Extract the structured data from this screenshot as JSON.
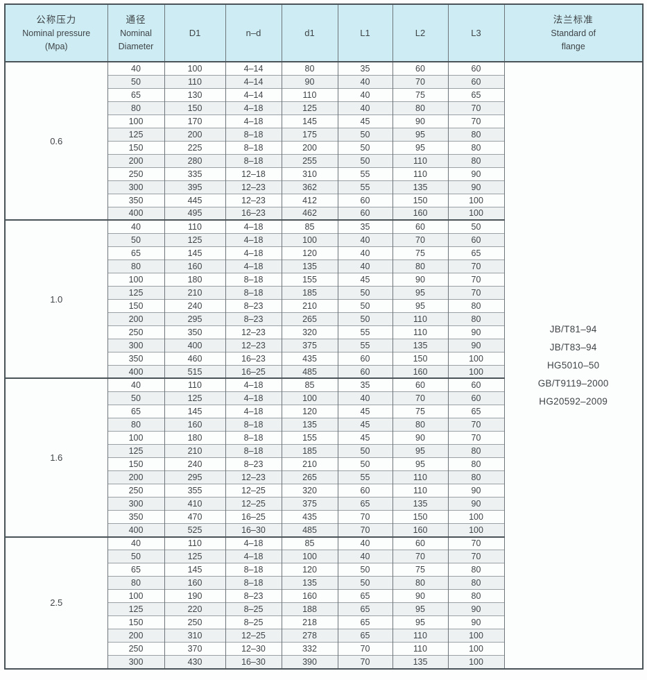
{
  "header": {
    "pressure": {
      "zh": "公称压力",
      "en": "Nominal pressure",
      "unit": "(Mpa)"
    },
    "diameter": {
      "zh": "通径",
      "en1": "Nominal",
      "en2": "Diameter"
    },
    "dims": [
      "D1",
      "n–d",
      "d1",
      "L1",
      "L2",
      "L3"
    ],
    "dim_names": [
      "diameter",
      "D1",
      "n-d",
      "d1",
      "L1",
      "L2",
      "L3"
    ],
    "standard": {
      "zh": "法兰标准",
      "en1": "Standard of",
      "en2": "flange"
    }
  },
  "standards": [
    "JB/T81–94",
    "JB/T83–94",
    "HG5010–50",
    "GB/T9119–2000",
    "HG20592–2009"
  ],
  "groups": [
    {
      "pressure": "0.6",
      "rows": [
        [
          "40",
          "100",
          "4–14",
          "80",
          "35",
          "60",
          "60"
        ],
        [
          "50",
          "110",
          "4–14",
          "90",
          "40",
          "70",
          "60"
        ],
        [
          "65",
          "130",
          "4–14",
          "110",
          "40",
          "75",
          "65"
        ],
        [
          "80",
          "150",
          "4–18",
          "125",
          "40",
          "80",
          "70"
        ],
        [
          "100",
          "170",
          "4–18",
          "145",
          "45",
          "90",
          "70"
        ],
        [
          "125",
          "200",
          "8–18",
          "175",
          "50",
          "95",
          "80"
        ],
        [
          "150",
          "225",
          "8–18",
          "200",
          "50",
          "95",
          "80"
        ],
        [
          "200",
          "280",
          "8–18",
          "255",
          "50",
          "110",
          "80"
        ],
        [
          "250",
          "335",
          "12–18",
          "310",
          "55",
          "110",
          "90"
        ],
        [
          "300",
          "395",
          "12–23",
          "362",
          "55",
          "135",
          "90"
        ],
        [
          "350",
          "445",
          "12–23",
          "412",
          "60",
          "150",
          "100"
        ],
        [
          "400",
          "495",
          "16–23",
          "462",
          "60",
          "160",
          "100"
        ]
      ]
    },
    {
      "pressure": "1.0",
      "rows": [
        [
          "40",
          "110",
          "4–18",
          "85",
          "35",
          "60",
          "50"
        ],
        [
          "50",
          "125",
          "4–18",
          "100",
          "40",
          "70",
          "60"
        ],
        [
          "65",
          "145",
          "4–18",
          "120",
          "40",
          "75",
          "65"
        ],
        [
          "80",
          "160",
          "4–18",
          "135",
          "40",
          "80",
          "70"
        ],
        [
          "100",
          "180",
          "8–18",
          "155",
          "45",
          "90",
          "70"
        ],
        [
          "125",
          "210",
          "8–18",
          "185",
          "50",
          "95",
          "70"
        ],
        [
          "150",
          "240",
          "8–23",
          "210",
          "50",
          "95",
          "80"
        ],
        [
          "200",
          "295",
          "8–23",
          "265",
          "50",
          "110",
          "80"
        ],
        [
          "250",
          "350",
          "12–23",
          "320",
          "55",
          "110",
          "90"
        ],
        [
          "300",
          "400",
          "12–23",
          "375",
          "55",
          "135",
          "90"
        ],
        [
          "350",
          "460",
          "16–23",
          "435",
          "60",
          "150",
          "100"
        ],
        [
          "400",
          "515",
          "16–25",
          "485",
          "60",
          "160",
          "100"
        ]
      ]
    },
    {
      "pressure": "1.6",
      "rows": [
        [
          "40",
          "110",
          "4–18",
          "85",
          "35",
          "60",
          "60"
        ],
        [
          "50",
          "125",
          "4–18",
          "100",
          "40",
          "70",
          "60"
        ],
        [
          "65",
          "145",
          "4–18",
          "120",
          "45",
          "75",
          "65"
        ],
        [
          "80",
          "160",
          "8–18",
          "135",
          "45",
          "80",
          "70"
        ],
        [
          "100",
          "180",
          "8–18",
          "155",
          "45",
          "90",
          "70"
        ],
        [
          "125",
          "210",
          "8–18",
          "185",
          "50",
          "95",
          "80"
        ],
        [
          "150",
          "240",
          "8–23",
          "210",
          "50",
          "95",
          "80"
        ],
        [
          "200",
          "295",
          "12–23",
          "265",
          "55",
          "110",
          "80"
        ],
        [
          "250",
          "355",
          "12–25",
          "320",
          "60",
          "110",
          "90"
        ],
        [
          "300",
          "410",
          "12–25",
          "375",
          "65",
          "135",
          "90"
        ],
        [
          "350",
          "470",
          "16–25",
          "435",
          "70",
          "150",
          "100"
        ],
        [
          "400",
          "525",
          "16–30",
          "485",
          "70",
          "160",
          "100"
        ]
      ]
    },
    {
      "pressure": "2.5",
      "rows": [
        [
          "40",
          "110",
          "4–18",
          "85",
          "40",
          "60",
          "70"
        ],
        [
          "50",
          "125",
          "4–18",
          "100",
          "40",
          "70",
          "70"
        ],
        [
          "65",
          "145",
          "8–18",
          "120",
          "50",
          "75",
          "80"
        ],
        [
          "80",
          "160",
          "8–18",
          "135",
          "50",
          "80",
          "80"
        ],
        [
          "100",
          "190",
          "8–23",
          "160",
          "65",
          "90",
          "80"
        ],
        [
          "125",
          "220",
          "8–25",
          "188",
          "65",
          "95",
          "90"
        ],
        [
          "150",
          "250",
          "8–25",
          "218",
          "65",
          "95",
          "90"
        ],
        [
          "200",
          "310",
          "12–25",
          "278",
          "65",
          "110",
          "100"
        ],
        [
          "250",
          "370",
          "12–30",
          "332",
          "70",
          "110",
          "100"
        ],
        [
          "300",
          "430",
          "16–30",
          "390",
          "70",
          "135",
          "100"
        ]
      ]
    }
  ],
  "colors": {
    "header_bg": "#cdecf3",
    "shaded_row_bg": "#edf1f2",
    "grid_line": "#9aa1a5",
    "column_line": "#6d757a",
    "outer_border": "#495256",
    "text": "#3f4447"
  }
}
